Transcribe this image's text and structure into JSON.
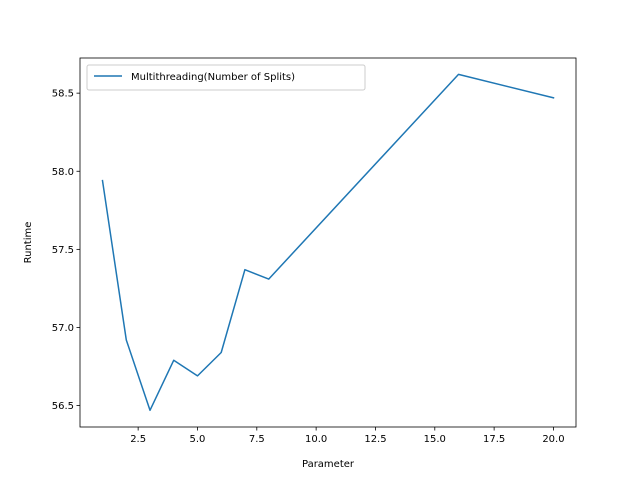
{
  "chart_data": {
    "type": "line",
    "title": "",
    "xlabel": "Parameter",
    "ylabel": "Runtime",
    "xlim": [
      0.05,
      20.95
    ],
    "ylim": [
      56.363,
      58.725
    ],
    "x_ticks": [
      2.5,
      5.0,
      7.5,
      10.0,
      12.5,
      15.0,
      17.5,
      20.0
    ],
    "x_tick_labels": [
      "2.5",
      "5.0",
      "7.5",
      "10.0",
      "12.5",
      "15.0",
      "17.5",
      "20.0"
    ],
    "y_ticks": [
      56.5,
      57.0,
      57.5,
      58.0,
      58.5
    ],
    "y_tick_labels": [
      "56.5",
      "57.0",
      "57.5",
      "58.0",
      "58.5"
    ],
    "grid": false,
    "legend_position": "top-left",
    "series": [
      {
        "name": "Multithreading(Number of Splits)",
        "color": "#1f77b4",
        "x": [
          1,
          2,
          3,
          4,
          5,
          6,
          7,
          8,
          16,
          20
        ],
        "y": [
          57.94,
          56.92,
          56.47,
          56.79,
          56.69,
          56.84,
          57.37,
          57.31,
          58.62,
          58.47
        ]
      }
    ]
  }
}
